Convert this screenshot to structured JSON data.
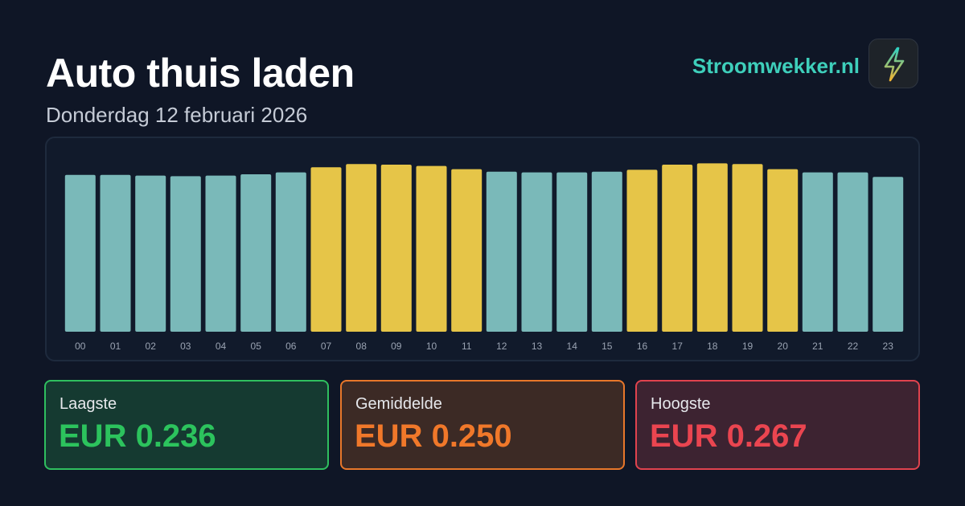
{
  "header": {
    "title": "Auto thuis laden",
    "date": "Donderdag 12 februari 2026"
  },
  "brand": {
    "name": "Stroomwekker.nl",
    "icon": "lightning-bolt-icon"
  },
  "colors": {
    "background": "#0f1626",
    "bar_normal": "#7ab9b9",
    "bar_high": "#e6c548",
    "low": "#2cc35d",
    "average": "#f0782a",
    "high": "#ea4550",
    "brand": "#3ecfbb"
  },
  "chart_data": {
    "type": "bar",
    "categories": [
      "00",
      "01",
      "02",
      "03",
      "04",
      "05",
      "06",
      "07",
      "08",
      "09",
      "10",
      "11",
      "12",
      "13",
      "14",
      "15",
      "16",
      "17",
      "18",
      "19",
      "20",
      "21",
      "22",
      "23"
    ],
    "values": [
      0.244,
      0.244,
      0.243,
      0.242,
      0.243,
      0.245,
      0.248,
      0.256,
      0.261,
      0.26,
      0.258,
      0.253,
      0.249,
      0.248,
      0.248,
      0.249,
      0.252,
      0.26,
      0.262,
      0.261,
      0.253,
      0.248,
      0.248,
      0.241
    ],
    "highlighted": [
      false,
      false,
      false,
      false,
      false,
      false,
      false,
      true,
      true,
      true,
      true,
      true,
      false,
      false,
      false,
      false,
      true,
      true,
      true,
      true,
      true,
      false,
      false,
      false
    ],
    "title": "",
    "xlabel": "",
    "ylabel": "",
    "grid": false
  },
  "stats": {
    "low": {
      "label": "Laagste",
      "value": "EUR 0.236"
    },
    "average": {
      "label": "Gemiddelde",
      "value": "EUR 0.250"
    },
    "high": {
      "label": "Hoogste",
      "value": "EUR 0.267"
    }
  }
}
